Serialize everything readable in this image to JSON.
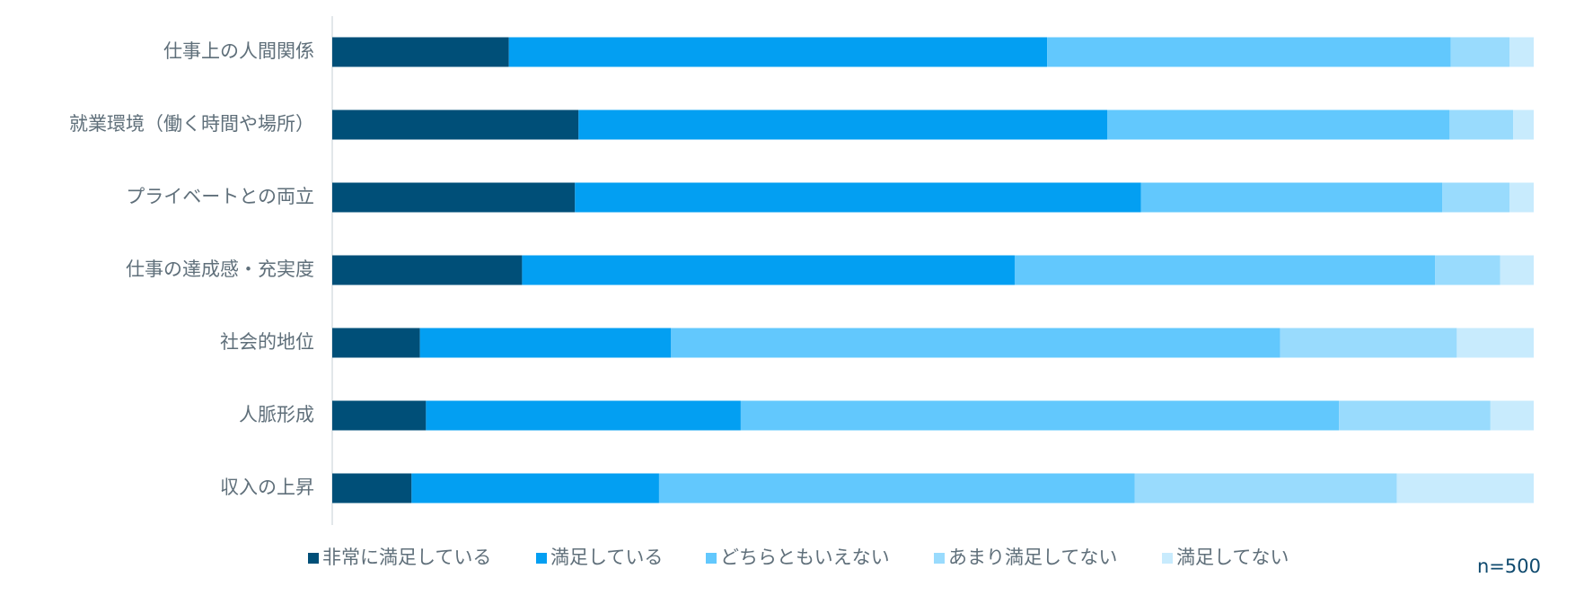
{
  "chart_data": {
    "type": "bar",
    "orientation": "horizontal",
    "stacked": "percent",
    "categories": [
      "仕事上の人間関係",
      "就業環境（働く時間や場所）",
      "プライベートとの両立",
      "仕事の達成感・充実度",
      "社会的地位",
      "人脈形成",
      "収入の上昇"
    ],
    "series": [
      {
        "name": "非常に満足している",
        "color": "#004f78",
        "values": [
          14.7,
          20.5,
          20.2,
          15.8,
          7.3,
          7.8,
          6.6
        ]
      },
      {
        "name": "満足している",
        "color": "#039ff2",
        "values": [
          44.8,
          44.0,
          47.1,
          41.0,
          20.9,
          26.2,
          20.6
        ]
      },
      {
        "name": "どちらともいえない",
        "color": "#62c8fd",
        "values": [
          33.6,
          28.5,
          25.1,
          35.0,
          50.7,
          49.8,
          39.6
        ]
      },
      {
        "name": "あまり満足してない",
        "color": "#99dbfd",
        "values": [
          4.9,
          5.3,
          5.6,
          5.4,
          14.7,
          12.6,
          21.8
        ]
      },
      {
        "name": "満足してない",
        "color": "#c8ebfd",
        "values": [
          2.0,
          1.7,
          2.0,
          2.8,
          6.4,
          3.6,
          11.4
        ]
      }
    ],
    "xlim": [
      0,
      100
    ],
    "grid": false,
    "legend_position": "bottom",
    "note": "n=500"
  }
}
